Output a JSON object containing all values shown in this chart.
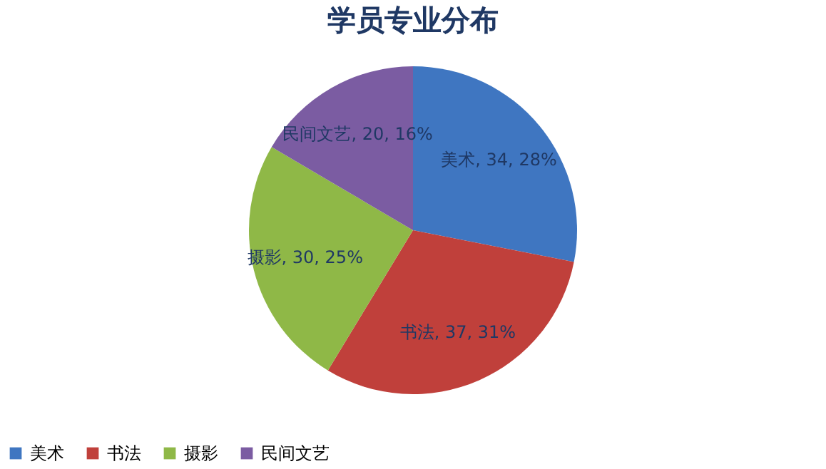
{
  "chart_data": {
    "type": "pie",
    "title": "学员专业分布",
    "categories": [
      "美术",
      "书法",
      "摄影",
      "民间文艺"
    ],
    "values": [
      34,
      37,
      30,
      20
    ],
    "colors": [
      "#3f76c1",
      "#c0403b",
      "#8fb847",
      "#7b5ca2"
    ],
    "value_labels": [
      "美术, 34, 28%",
      "书法, 37, 31%",
      "摄影, 30, 25%",
      "民间文艺, 20, 16%"
    ],
    "legend": "bottom"
  }
}
